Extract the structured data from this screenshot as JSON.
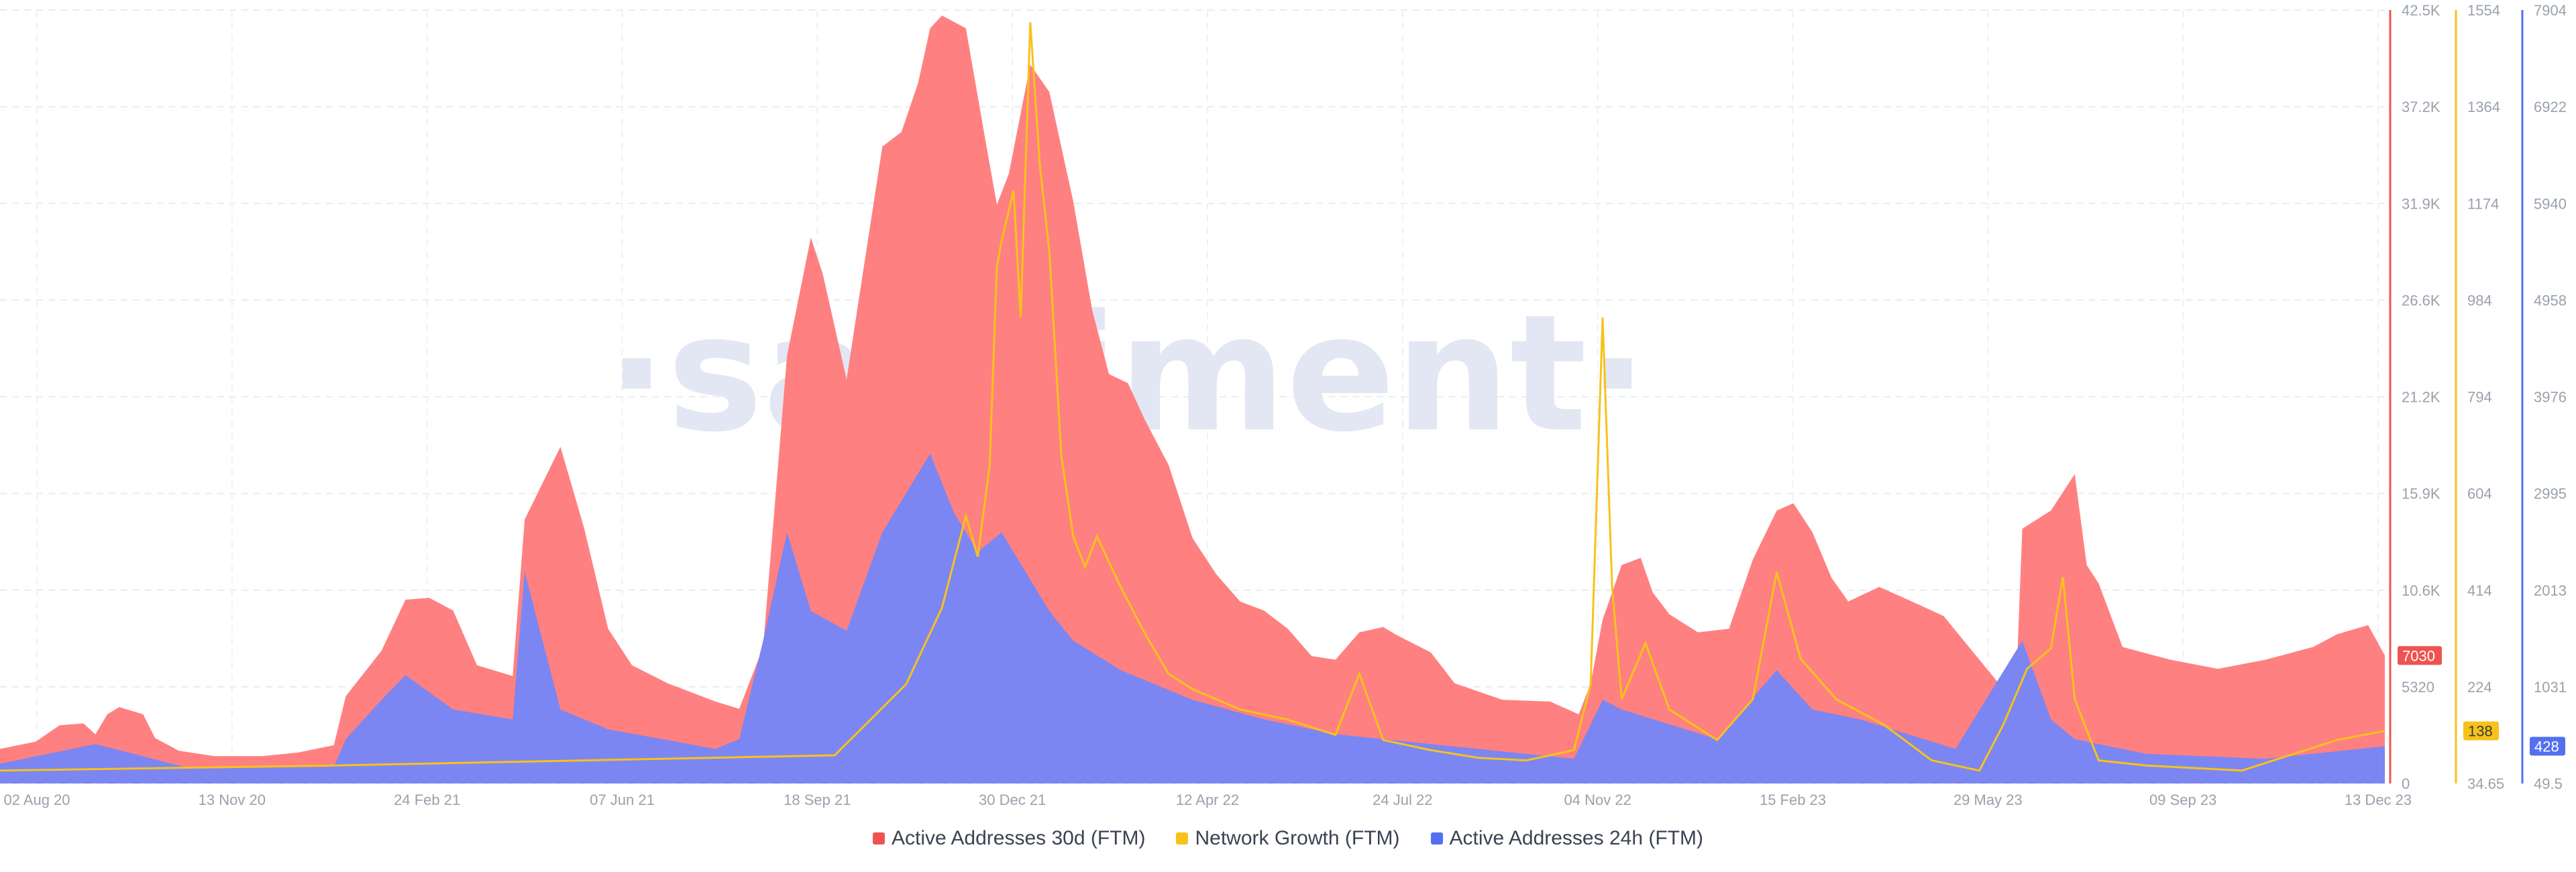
{
  "watermark": "·santiment·",
  "chart_data": {
    "type": "area",
    "x_ticks": [
      "02 Aug 20",
      "13 Nov 20",
      "24 Feb 21",
      "07 Jun 21",
      "18 Sep 21",
      "30 Dec 21",
      "12 Apr 22",
      "24 Jul 22",
      "04 Nov 22",
      "15 Feb 23",
      "29 May 23",
      "09 Sep 23",
      "13 Dec 23"
    ],
    "axes": {
      "red": {
        "ticks": [
          "42.5K",
          "37.2K",
          "31.9K",
          "26.6K",
          "21.2K",
          "15.9K",
          "10.6K",
          "5320",
          "0"
        ],
        "ylim": [
          0,
          42500
        ],
        "current": "7030",
        "color": "#ef5350"
      },
      "yellow": {
        "ticks": [
          "1554",
          "1364",
          "1174",
          "984",
          "794",
          "604",
          "414",
          "224",
          "34.65"
        ],
        "ylim": [
          34.65,
          1554
        ],
        "current": "138",
        "color": "#f7c21b"
      },
      "blue": {
        "ticks": [
          "7904",
          "6922",
          "5940",
          "4958",
          "3976",
          "2995",
          "2013",
          "1031",
          "49.5"
        ],
        "ylim": [
          49.5,
          7904
        ],
        "current": "428",
        "color": "#5470f0"
      }
    },
    "series": [
      {
        "name": "Active Addresses 30d (FTM)",
        "color": "#ff8080",
        "axis": "red",
        "points": [
          [
            0,
            1900
          ],
          [
            0.015,
            2300
          ],
          [
            0.025,
            3200
          ],
          [
            0.035,
            3300
          ],
          [
            0.04,
            2700
          ],
          [
            0.045,
            3800
          ],
          [
            0.05,
            4200
          ],
          [
            0.06,
            3800
          ],
          [
            0.065,
            2500
          ],
          [
            0.075,
            1800
          ],
          [
            0.09,
            1500
          ],
          [
            0.11,
            1500
          ],
          [
            0.125,
            1700
          ],
          [
            0.14,
            2100
          ],
          [
            0.145,
            4800
          ],
          [
            0.16,
            7300
          ],
          [
            0.17,
            10100
          ],
          [
            0.18,
            10200
          ],
          [
            0.19,
            9500
          ],
          [
            0.2,
            6500
          ],
          [
            0.215,
            5900
          ],
          [
            0.22,
            14500
          ],
          [
            0.235,
            18500
          ],
          [
            0.245,
            14000
          ],
          [
            0.255,
            8500
          ],
          [
            0.265,
            6500
          ],
          [
            0.28,
            5500
          ],
          [
            0.3,
            4500
          ],
          [
            0.31,
            4100
          ],
          [
            0.32,
            7500
          ],
          [
            0.33,
            23500
          ],
          [
            0.34,
            30000
          ],
          [
            0.345,
            28000
          ],
          [
            0.355,
            22200
          ],
          [
            0.36,
            26500
          ],
          [
            0.37,
            35000
          ],
          [
            0.378,
            35800
          ],
          [
            0.385,
            38500
          ],
          [
            0.39,
            41500
          ],
          [
            0.395,
            42200
          ],
          [
            0.405,
            41500
          ],
          [
            0.413,
            35500
          ],
          [
            0.418,
            31800
          ],
          [
            0.423,
            33500
          ],
          [
            0.432,
            39500
          ],
          [
            0.44,
            38000
          ],
          [
            0.45,
            32000
          ],
          [
            0.458,
            26000
          ],
          [
            0.465,
            22500
          ],
          [
            0.473,
            22000
          ],
          [
            0.48,
            20000
          ],
          [
            0.49,
            17500
          ],
          [
            0.5,
            13500
          ],
          [
            0.51,
            11500
          ],
          [
            0.52,
            10000
          ],
          [
            0.53,
            9500
          ],
          [
            0.54,
            8500
          ],
          [
            0.55,
            7000
          ],
          [
            0.56,
            6800
          ],
          [
            0.57,
            8300
          ],
          [
            0.58,
            8600
          ],
          [
            0.585,
            8200
          ],
          [
            0.6,
            7200
          ],
          [
            0.61,
            5500
          ],
          [
            0.63,
            4600
          ],
          [
            0.65,
            4500
          ],
          [
            0.662,
            3800
          ],
          [
            0.667,
            5500
          ],
          [
            0.672,
            9000
          ],
          [
            0.68,
            12000
          ],
          [
            0.688,
            12400
          ],
          [
            0.693,
            10500
          ],
          [
            0.7,
            9300
          ],
          [
            0.712,
            8300
          ],
          [
            0.725,
            8500
          ],
          [
            0.735,
            12300
          ],
          [
            0.745,
            15000
          ],
          [
            0.752,
            15400
          ],
          [
            0.76,
            13800
          ],
          [
            0.768,
            11300
          ],
          [
            0.775,
            10000
          ],
          [
            0.788,
            10800
          ],
          [
            0.8,
            10100
          ],
          [
            0.815,
            9200
          ],
          [
            0.83,
            6800
          ],
          [
            0.84,
            5200
          ],
          [
            0.845,
            4000
          ],
          [
            0.848,
            14000
          ],
          [
            0.86,
            15000
          ],
          [
            0.87,
            17000
          ],
          [
            0.875,
            12000
          ],
          [
            0.88,
            11000
          ],
          [
            0.89,
            7500
          ],
          [
            0.91,
            6800
          ],
          [
            0.93,
            6300
          ],
          [
            0.95,
            6800
          ],
          [
            0.97,
            7500
          ],
          [
            0.98,
            8200
          ],
          [
            0.993,
            8700
          ],
          [
            1,
            7030
          ]
        ]
      },
      {
        "name": "Network Growth (FTM)",
        "color": "#f7c21b",
        "axis": "yellow",
        "points": [
          [
            0,
            60
          ],
          [
            0.14,
            70
          ],
          [
            0.35,
            90
          ],
          [
            0.38,
            230
          ],
          [
            0.395,
            380
          ],
          [
            0.405,
            560
          ],
          [
            0.41,
            480
          ],
          [
            0.415,
            660
          ],
          [
            0.418,
            1050
          ],
          [
            0.42,
            1100
          ],
          [
            0.425,
            1200
          ],
          [
            0.428,
            950
          ],
          [
            0.432,
            1530
          ],
          [
            0.436,
            1250
          ],
          [
            0.44,
            1080
          ],
          [
            0.445,
            680
          ],
          [
            0.45,
            520
          ],
          [
            0.455,
            460
          ],
          [
            0.46,
            520
          ],
          [
            0.47,
            420
          ],
          [
            0.48,
            330
          ],
          [
            0.49,
            250
          ],
          [
            0.5,
            220
          ],
          [
            0.52,
            180
          ],
          [
            0.54,
            160
          ],
          [
            0.56,
            130
          ],
          [
            0.57,
            250
          ],
          [
            0.58,
            120
          ],
          [
            0.6,
            100
          ],
          [
            0.62,
            85
          ],
          [
            0.64,
            80
          ],
          [
            0.66,
            100
          ],
          [
            0.667,
            230
          ],
          [
            0.672,
            950
          ],
          [
            0.676,
            420
          ],
          [
            0.68,
            200
          ],
          [
            0.69,
            310
          ],
          [
            0.7,
            180
          ],
          [
            0.72,
            120
          ],
          [
            0.735,
            200
          ],
          [
            0.745,
            450
          ],
          [
            0.755,
            280
          ],
          [
            0.77,
            200
          ],
          [
            0.79,
            150
          ],
          [
            0.81,
            80
          ],
          [
            0.82,
            70
          ],
          [
            0.83,
            60
          ],
          [
            0.84,
            150
          ],
          [
            0.85,
            260
          ],
          [
            0.86,
            300
          ],
          [
            0.865,
            440
          ],
          [
            0.87,
            200
          ],
          [
            0.88,
            80
          ],
          [
            0.9,
            70
          ],
          [
            0.92,
            65
          ],
          [
            0.94,
            60
          ],
          [
            0.96,
            90
          ],
          [
            0.98,
            120
          ],
          [
            1,
            138
          ]
        ]
      },
      {
        "name": "Active Addresses 24h (FTM)",
        "color": "#7b86f2",
        "axis": "blue",
        "points": [
          [
            0,
            250
          ],
          [
            0.04,
            450
          ],
          [
            0.08,
            200
          ],
          [
            0.14,
            220
          ],
          [
            0.145,
            500
          ],
          [
            0.16,
            900
          ],
          [
            0.17,
            1150
          ],
          [
            0.19,
            800
          ],
          [
            0.215,
            700
          ],
          [
            0.22,
            2200
          ],
          [
            0.235,
            800
          ],
          [
            0.255,
            600
          ],
          [
            0.3,
            400
          ],
          [
            0.31,
            500
          ],
          [
            0.32,
            1500
          ],
          [
            0.33,
            2600
          ],
          [
            0.34,
            1800
          ],
          [
            0.355,
            1600
          ],
          [
            0.37,
            2600
          ],
          [
            0.38,
            3000
          ],
          [
            0.39,
            3400
          ],
          [
            0.4,
            2800
          ],
          [
            0.41,
            2400
          ],
          [
            0.42,
            2600
          ],
          [
            0.43,
            2200
          ],
          [
            0.44,
            1800
          ],
          [
            0.45,
            1500
          ],
          [
            0.47,
            1200
          ],
          [
            0.5,
            900
          ],
          [
            0.53,
            700
          ],
          [
            0.56,
            550
          ],
          [
            0.6,
            450
          ],
          [
            0.64,
            350
          ],
          [
            0.66,
            300
          ],
          [
            0.672,
            900
          ],
          [
            0.68,
            800
          ],
          [
            0.7,
            650
          ],
          [
            0.72,
            500
          ],
          [
            0.745,
            1200
          ],
          [
            0.76,
            800
          ],
          [
            0.78,
            700
          ],
          [
            0.82,
            400
          ],
          [
            0.848,
            1500
          ],
          [
            0.86,
            700
          ],
          [
            0.87,
            500
          ],
          [
            0.9,
            350
          ],
          [
            0.95,
            300
          ],
          [
            1,
            428
          ]
        ]
      }
    ]
  },
  "legend": [
    {
      "label": "Active Addresses 30d (FTM)",
      "color": "#ef5350"
    },
    {
      "label": "Network Growth (FTM)",
      "color": "#f7c21b"
    },
    {
      "label": "Active Addresses 24h (FTM)",
      "color": "#5470f0"
    }
  ]
}
